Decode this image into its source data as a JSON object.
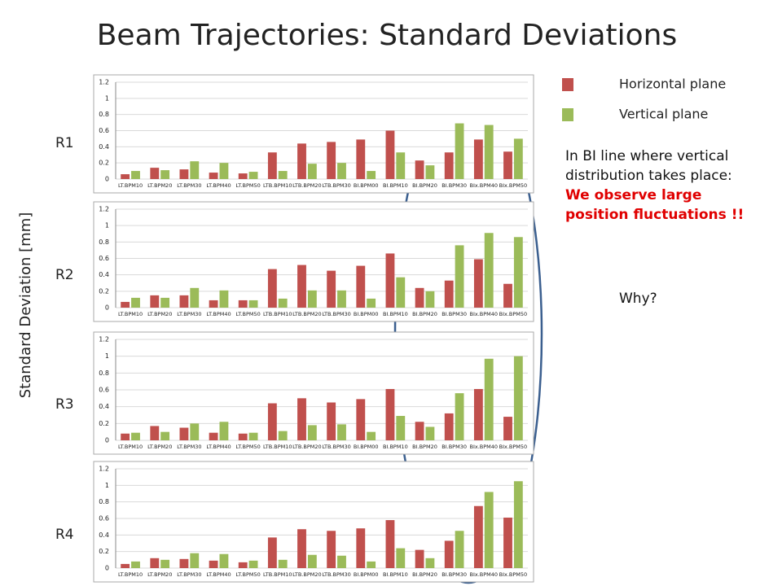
{
  "slide": {
    "title": "Beam Trajectories: Standard Deviations",
    "y_label": "Standard Deviation  [mm]",
    "row_labels": [
      "R1",
      "R2",
      "R3",
      "R4"
    ],
    "note": "In BI line where vertical distribution takes place:",
    "note_highlight": "We observe large position fluctuations !!",
    "question": "Why?"
  },
  "chart_data": [
    {
      "type": "bar",
      "categories": [
        "LT.BPM10",
        "LT.BPM20",
        "LT.BPM30",
        "LT.BPM40",
        "LT.BPM50",
        "LTB.BPM10",
        "LTB.BPM20",
        "LTB.BPM30",
        "BI.BPM00",
        "BI.BPM10",
        "BI.BPM20",
        "BI.BPM30",
        "BIx.BPM40",
        "BIx.BPM50"
      ],
      "series": [
        {
          "name": "Horizontal plane",
          "color": "#c0504d",
          "values": [
            0.06,
            0.14,
            0.12,
            0.08,
            0.07,
            0.33,
            0.44,
            0.46,
            0.49,
            0.6,
            0.23,
            0.33,
            0.49,
            0.34
          ]
        },
        {
          "name": "Vertical plane",
          "color": "#9bbb59",
          "values": [
            0.1,
            0.11,
            0.22,
            0.2,
            0.09,
            0.1,
            0.19,
            0.2,
            0.1,
            0.33,
            0.17,
            0.69,
            0.67,
            0.5
          ]
        }
      ],
      "ylim": [
        0,
        1.2
      ],
      "yticks": [
        0,
        0.2,
        0.4,
        0.6,
        0.8,
        1,
        1.2
      ],
      "grid": true
    },
    {
      "type": "bar",
      "categories": [
        "LT.BPM10",
        "LT.BPM20",
        "LT.BPM30",
        "LT.BPM40",
        "LT.BPM50",
        "LTB.BPM10",
        "LTB.BPM20",
        "LTB.BPM30",
        "BI.BPM00",
        "BI.BPM10",
        "BI.BPM20",
        "BI.BPM30",
        "BIx.BPM40",
        "BIx.BPM50"
      ],
      "series": [
        {
          "color": "#c0504d",
          "values": [
            0.07,
            0.15,
            0.15,
            0.09,
            0.09,
            0.47,
            0.52,
            0.45,
            0.51,
            0.66,
            0.24,
            0.33,
            0.59,
            0.29
          ]
        },
        {
          "color": "#9bbb59",
          "values": [
            0.12,
            0.12,
            0.24,
            0.21,
            0.09,
            0.11,
            0.21,
            0.21,
            0.11,
            0.37,
            0.2,
            0.76,
            0.91,
            0.86
          ]
        }
      ],
      "ylim": [
        0,
        1.2
      ],
      "yticks": [
        0,
        0.2,
        0.4,
        0.6,
        0.8,
        1,
        1.2
      ],
      "grid": true
    },
    {
      "type": "bar",
      "categories": [
        "LT.BPM10",
        "LT.BPM20",
        "LT.BPM30",
        "LT.BPM40",
        "LT.BPM50",
        "LTB.BPM10",
        "LTB.BPM20",
        "LTB.BPM30",
        "BI.BPM00",
        "BI.BPM10",
        "BI.BPM20",
        "BI.BPM30",
        "BIx.BPM40",
        "BIx.BPM50"
      ],
      "series": [
        {
          "color": "#c0504d",
          "values": [
            0.08,
            0.17,
            0.15,
            0.09,
            0.08,
            0.44,
            0.5,
            0.45,
            0.49,
            0.61,
            0.22,
            0.32,
            0.61,
            0.28
          ]
        },
        {
          "color": "#9bbb59",
          "values": [
            0.09,
            0.1,
            0.2,
            0.22,
            0.09,
            0.11,
            0.18,
            0.19,
            0.1,
            0.29,
            0.16,
            0.56,
            0.97,
            1.0
          ]
        }
      ],
      "ylim": [
        0,
        1.2
      ],
      "yticks": [
        0,
        0.2,
        0.4,
        0.6,
        0.8,
        1,
        1.2
      ],
      "grid": true
    },
    {
      "type": "bar",
      "categories": [
        "LT.BPM10",
        "LT.BPM20",
        "LT.BPM30",
        "LT.BPM40",
        "LT.BPM50",
        "LTB.BPM10",
        "LTB.BPM20",
        "LTB.BPM30",
        "BI.BPM00",
        "BI.BPM10",
        "BI.BPM20",
        "BI.BPM30",
        "BIx.BPM40",
        "BIx.BPM50"
      ],
      "series": [
        {
          "color": "#c0504d",
          "values": [
            0.05,
            0.12,
            0.11,
            0.09,
            0.07,
            0.37,
            0.47,
            0.45,
            0.48,
            0.58,
            0.22,
            0.33,
            0.75,
            0.61
          ]
        },
        {
          "color": "#9bbb59",
          "values": [
            0.08,
            0.1,
            0.18,
            0.17,
            0.09,
            0.1,
            0.16,
            0.15,
            0.08,
            0.24,
            0.12,
            0.45,
            0.92,
            1.05
          ]
        }
      ],
      "ylim": [
        0,
        1.2
      ],
      "yticks": [
        0,
        0.2,
        0.4,
        0.6,
        0.8,
        1,
        1.2
      ],
      "grid": true
    }
  ]
}
